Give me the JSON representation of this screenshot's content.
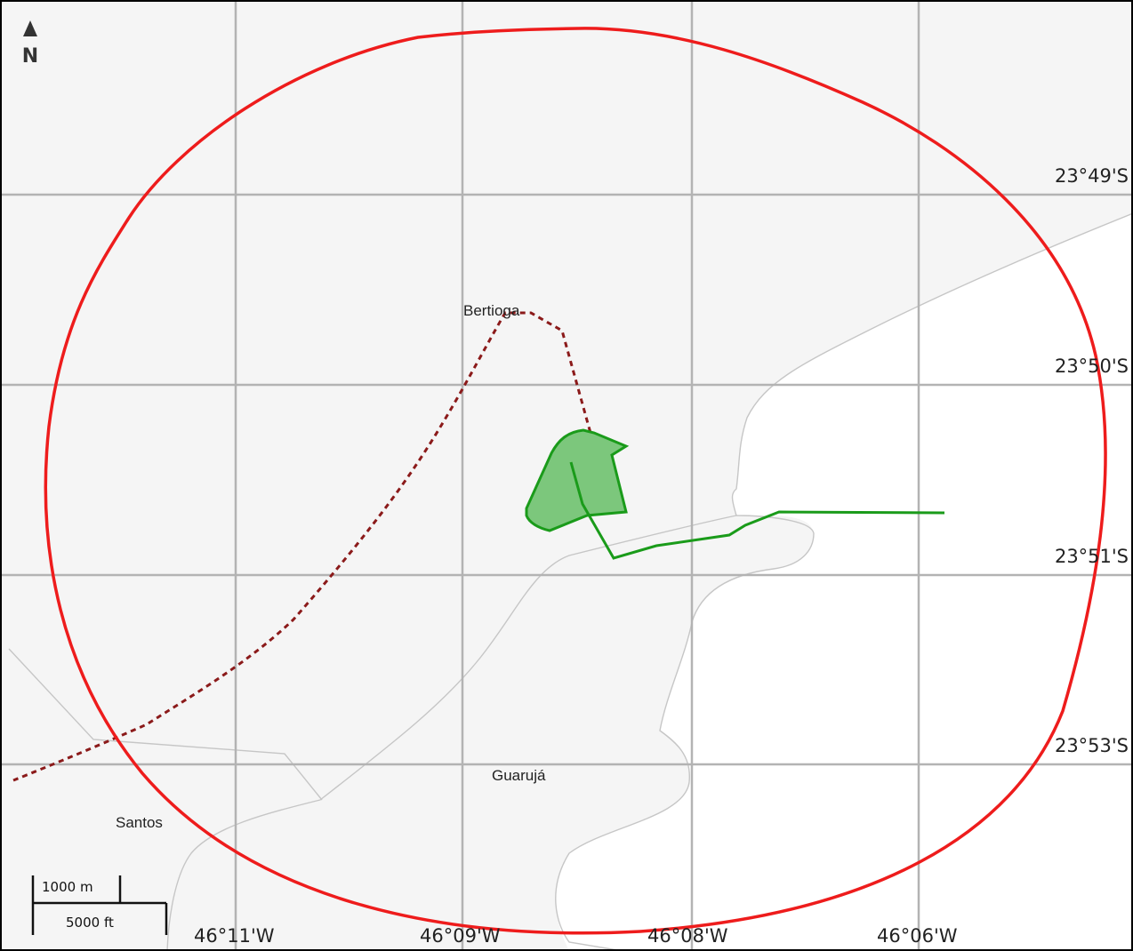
{
  "map": {
    "north_arrow": {
      "label": "N",
      "icon": "north-arrow-icon"
    },
    "latitude_labels": [
      "23°49'S",
      "23°50'S",
      "23°51'S",
      "23°53'S"
    ],
    "longitude_labels": [
      "46°11'W",
      "46°09'W",
      "46°08'W",
      "46°06'W"
    ],
    "places": {
      "bertioga": "Bertioga",
      "guaruja": "Guarujá",
      "santos": "Santos"
    },
    "scale_bar": {
      "metric": "1000 m",
      "imperial": "5000 ft"
    },
    "colors": {
      "land": "#f5f5f5",
      "water": "#ffffff",
      "grid": "#b3b3b3",
      "range_ring": "#ee1c1c",
      "dotted_route": "#8b1a1a",
      "green_route": "#1a9b1a",
      "green_area_fill": "#7cc77c",
      "green_area_stroke": "#1a9b1a",
      "boundary": "#c6c6c6",
      "border": "#000000"
    }
  }
}
